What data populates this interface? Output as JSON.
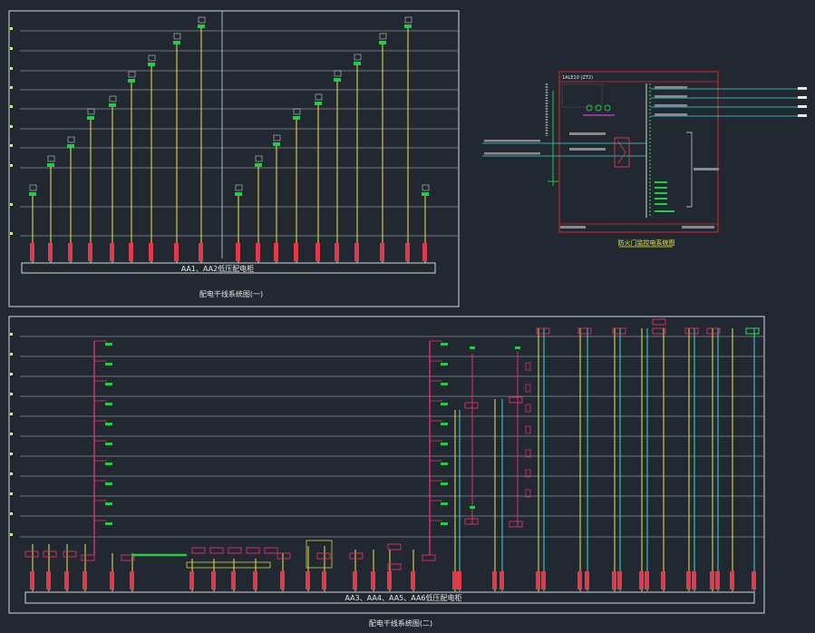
{
  "colors": {
    "background": "#222831",
    "frame": "#d6d6d6",
    "floor_line": "#bfbfbf",
    "riser_yellow": "#e8e84a",
    "riser_cyan": "#3fd6d6",
    "riser_red": "#e0306a",
    "breaker_green": "#22cc44",
    "label_red": "#e23a4a",
    "panel_red": "#d82828",
    "text_white": "#e8e8e8",
    "magenta": "#d040d0"
  },
  "diagram_top": {
    "busbar_label": "AA1、AA2低压配电柜",
    "caption": "配电干线系统图(一)"
  },
  "diagram_bottom": {
    "busbar_label": "AA3、AA4、AA5、AA6低压配电柜",
    "caption": "配电干线系统图(二)"
  },
  "panel": {
    "title": "1ALE10 (ZT2)",
    "caption": "防火门监控电系统图"
  }
}
